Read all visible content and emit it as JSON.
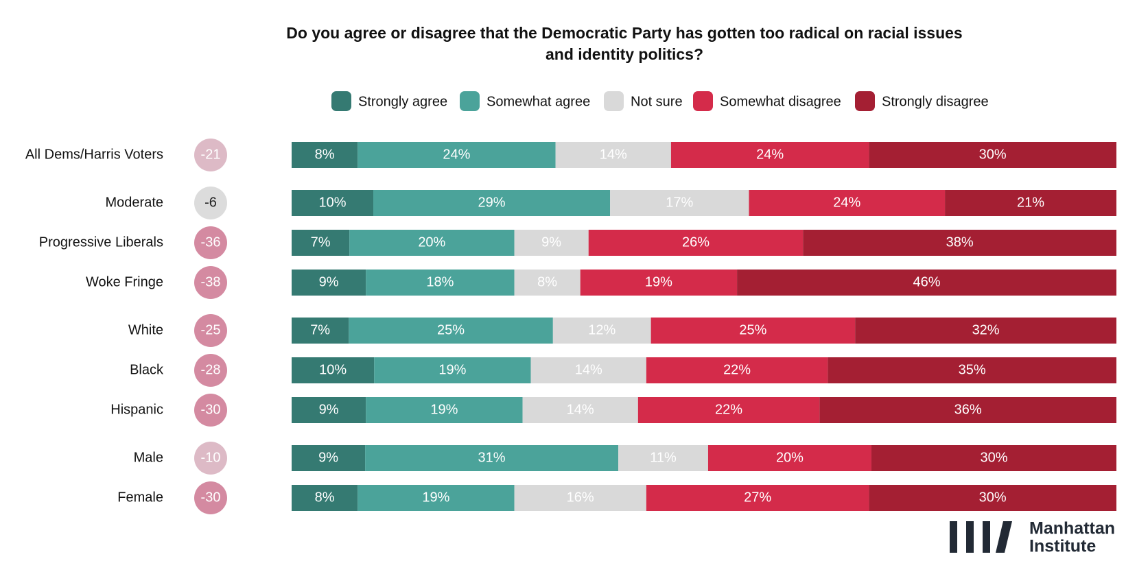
{
  "chart_data": {
    "type": "stacked-bar-100",
    "title": "Do you agree or disagree that the Democratic Party has gotten too radical on racial issues and identity politics?",
    "categories": [
      "All Dems/Harris Voters",
      "Moderate",
      "Progressive Liberals",
      "Woke Fringe",
      "White",
      "Black",
      "Hispanic",
      "Male",
      "Female"
    ],
    "series": [
      {
        "name": "Strongly agree",
        "color": "#357a72",
        "values": [
          8,
          10,
          7,
          9,
          7,
          10,
          9,
          9,
          8
        ],
        "value_labels": [
          "8%",
          "10%",
          "7%",
          "9%",
          "7%",
          "10%",
          "9%",
          "9%",
          "8%"
        ]
      },
      {
        "name": "Somewhat agree",
        "color": "#4ba39a",
        "values": [
          24,
          29,
          20,
          18,
          25,
          19,
          19,
          31,
          19
        ],
        "value_labels": [
          "24%",
          "29%",
          "20%",
          "18%",
          "25%",
          "19%",
          "19%",
          "31%",
          "19%"
        ]
      },
      {
        "name": "Not sure",
        "color": "#d9d9d9",
        "values": [
          14,
          17,
          9,
          8,
          12,
          14,
          14,
          11,
          16
        ],
        "value_labels": [
          "14%",
          "17%",
          "9%",
          "8%",
          "12%",
          "14%",
          "14%",
          "11%",
          "16%"
        ]
      },
      {
        "name": "Somewhat disagree",
        "color": "#d42b4a",
        "values": [
          24,
          24,
          26,
          19,
          25,
          22,
          22,
          20,
          27
        ],
        "value_labels": [
          "24%",
          "24%",
          "26%",
          "19%",
          "25%",
          "22%",
          "22%",
          "20%",
          "27%"
        ]
      },
      {
        "name": "Strongly disagree",
        "color": "#a41f33",
        "values": [
          30,
          21,
          38,
          46,
          32,
          35,
          36,
          30,
          30
        ],
        "value_labels": [
          "30%",
          "21%",
          "38%",
          "46%",
          "32%",
          "35%",
          "36%",
          "30%",
          "30%"
        ]
      }
    ],
    "net": [
      -21,
      -6,
      -36,
      -38,
      -25,
      -28,
      -30,
      -10,
      -30
    ],
    "logo": [
      "Manhattan",
      "Institute"
    ]
  }
}
